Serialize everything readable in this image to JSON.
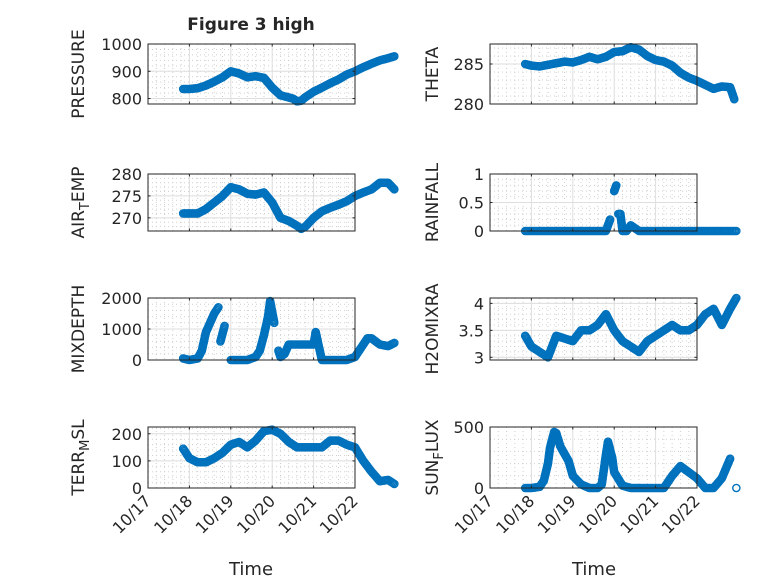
{
  "figure": {
    "title": "Figure 3 high",
    "x_tick_labels": [
      "10/17",
      "10/18",
      "10/19",
      "10/20",
      "10/21",
      "10/22"
    ],
    "xlabel": "Time",
    "marker_color": "#0072bd",
    "marker": "open-circle"
  },
  "chart_data": [
    {
      "type": "scatter",
      "id": "pressure",
      "position": "row1-left",
      "title": "Figure 3 high",
      "ylabel": "PRESSURE",
      "ylabel_parts": [
        "PRESSURE"
      ],
      "ylim": [
        780,
        1000
      ],
      "yticks": [
        800,
        900,
        1000
      ],
      "x": [
        0.85,
        1.0,
        1.2,
        1.4,
        1.6,
        1.8,
        2.0,
        2.2,
        2.4,
        2.6,
        2.8,
        3.0,
        3.2,
        3.5,
        3.6,
        3.7,
        3.8,
        4.0,
        4.2,
        4.4,
        4.6,
        4.8,
        5.0,
        5.2,
        5.4,
        5.6,
        5.8,
        5.95
      ],
      "values": [
        835,
        835,
        838,
        848,
        862,
        878,
        900,
        892,
        878,
        882,
        876,
        840,
        812,
        800,
        790,
        792,
        805,
        825,
        840,
        856,
        870,
        888,
        900,
        915,
        928,
        940,
        948,
        955
      ],
      "grid": true,
      "minor_grid": true
    },
    {
      "type": "scatter",
      "id": "theta",
      "position": "row1-right",
      "ylabel": "THETA",
      "ylabel_parts": [
        "THETA"
      ],
      "ylim": [
        280,
        287.5
      ],
      "yticks": [
        280,
        285
      ],
      "x": [
        0.85,
        1.0,
        1.2,
        1.4,
        1.6,
        1.8,
        2.0,
        2.2,
        2.4,
        2.6,
        2.8,
        3.0,
        3.2,
        3.4,
        3.6,
        3.8,
        4.0,
        4.2,
        4.4,
        4.6,
        4.8,
        5.0,
        5.2,
        5.4,
        5.6,
        5.8,
        5.9
      ],
      "values": [
        285,
        284.8,
        284.7,
        284.9,
        285.1,
        285.3,
        285.2,
        285.5,
        285.9,
        285.6,
        285.9,
        286.5,
        286.6,
        287.1,
        286.8,
        286.0,
        285.5,
        285.3,
        284.8,
        283.9,
        283.3,
        282.9,
        282.4,
        281.9,
        282.2,
        282.1,
        280.6
      ],
      "grid": true,
      "minor_grid": true
    },
    {
      "type": "scatter",
      "id": "air-temp",
      "position": "row2-left",
      "ylabel": "AIR_TEMP",
      "ylabel_parts": [
        "AIR",
        "T",
        "EMP"
      ],
      "ylim": [
        267,
        280
      ],
      "yticks": [
        270,
        275,
        280
      ],
      "x": [
        0.85,
        1.0,
        1.2,
        1.4,
        1.6,
        1.8,
        2.0,
        2.2,
        2.4,
        2.6,
        2.8,
        3.0,
        3.2,
        3.4,
        3.6,
        3.7,
        3.8,
        4.0,
        4.2,
        4.4,
        4.6,
        4.8,
        5.0,
        5.2,
        5.4,
        5.6,
        5.8,
        5.95
      ],
      "values": [
        271,
        271,
        271,
        272,
        273.5,
        275,
        277,
        276.5,
        275.5,
        275.3,
        275.8,
        273.5,
        270,
        269.3,
        268.2,
        267.5,
        268,
        270,
        271.5,
        272.3,
        273,
        273.8,
        275,
        275.8,
        276.5,
        278,
        278,
        276.5
      ],
      "grid": true,
      "minor_grid": true
    },
    {
      "type": "scatter",
      "id": "rainfall",
      "position": "row2-right",
      "ylabel": "RAINFALL",
      "ylabel_parts": [
        "RAINFALL"
      ],
      "ylim": [
        0,
        1
      ],
      "yticks": [
        0,
        0.5,
        1
      ],
      "x": [
        0.85,
        1.2,
        1.6,
        2.0,
        2.4,
        2.8,
        2.9,
        3.0,
        3.05,
        3.1,
        3.15,
        3.2,
        3.3,
        3.4,
        3.6,
        3.8,
        4.0,
        4.4,
        4.8,
        5.2,
        5.6,
        5.95
      ],
      "values": [
        0,
        0,
        0,
        0,
        0,
        0,
        0.2,
        0.7,
        0.8,
        0.3,
        0.3,
        0,
        0,
        0.1,
        0,
        0,
        0,
        0,
        0,
        0,
        0,
        0
      ],
      "grid": true,
      "minor_grid": true
    },
    {
      "type": "scatter",
      "id": "mixdepth",
      "position": "row3-left",
      "ylabel": "MIXDEPTH",
      "ylabel_parts": [
        "MIXDEPTH"
      ],
      "ylim": [
        0,
        2000
      ],
      "yticks": [
        0,
        1000,
        2000
      ],
      "x": [
        0.85,
        1.0,
        1.2,
        1.3,
        1.4,
        1.5,
        1.6,
        1.7,
        1.75,
        1.85,
        2.0,
        2.2,
        2.4,
        2.6,
        2.7,
        2.8,
        2.9,
        2.95,
        3.05,
        3.15,
        3.2,
        3.3,
        3.4,
        3.6,
        3.8,
        4.0,
        4.05,
        4.1,
        4.2,
        4.4,
        4.6,
        4.8,
        5.0,
        5.2,
        5.3,
        5.4,
        5.6,
        5.8,
        5.95
      ],
      "values": [
        50,
        0,
        50,
        300,
        900,
        1200,
        1500,
        1700,
        600,
        1100,
        0,
        0,
        0,
        100,
        300,
        800,
        1400,
        1900,
        1200,
        300,
        100,
        200,
        500,
        500,
        500,
        500,
        900,
        600,
        0,
        0,
        0,
        0,
        100,
        500,
        700,
        700,
        500,
        450,
        550
      ],
      "grid": true,
      "minor_grid": true
    },
    {
      "type": "scatter",
      "id": "h2omixra",
      "position": "row3-right",
      "ylabel": "H2OMIXRA",
      "ylabel_parts": [
        "H2OMIXRA"
      ],
      "ylim": [
        2.95,
        4.1
      ],
      "yticks": [
        3,
        3.5,
        4
      ],
      "x": [
        0.85,
        1.0,
        1.2,
        1.4,
        1.6,
        1.8,
        2.0,
        2.2,
        2.4,
        2.6,
        2.8,
        3.0,
        3.2,
        3.4,
        3.6,
        3.8,
        4.0,
        4.2,
        4.4,
        4.6,
        4.8,
        5.0,
        5.2,
        5.4,
        5.6,
        5.8,
        5.95
      ],
      "values": [
        3.4,
        3.2,
        3.1,
        3.0,
        3.4,
        3.35,
        3.3,
        3.5,
        3.5,
        3.6,
        3.8,
        3.5,
        3.3,
        3.2,
        3.1,
        3.3,
        3.4,
        3.5,
        3.6,
        3.5,
        3.5,
        3.6,
        3.8,
        3.9,
        3.6,
        3.9,
        4.1
      ],
      "grid": true,
      "minor_grid": true
    },
    {
      "type": "scatter",
      "id": "terr-msl",
      "position": "row4-left",
      "ylabel": "TERR_MSL",
      "ylabel_parts": [
        "TERR",
        "M",
        "SL"
      ],
      "ylim": [
        0,
        225
      ],
      "yticks": [
        0,
        100,
        200
      ],
      "x": [
        0.85,
        1.0,
        1.2,
        1.4,
        1.6,
        1.8,
        2.0,
        2.2,
        2.4,
        2.6,
        2.8,
        3.0,
        3.2,
        3.4,
        3.6,
        3.8,
        4.0,
        4.2,
        4.4,
        4.6,
        4.8,
        5.0,
        5.2,
        5.4,
        5.6,
        5.8,
        5.95
      ],
      "values": [
        145,
        110,
        95,
        95,
        110,
        130,
        160,
        170,
        150,
        175,
        210,
        215,
        200,
        170,
        150,
        150,
        150,
        150,
        175,
        175,
        160,
        150,
        100,
        60,
        25,
        30,
        15
      ],
      "grid": true,
      "minor_grid": true
    },
    {
      "type": "scatter",
      "id": "sun-flux",
      "position": "row4-right",
      "ylabel": "SUN_FLUX",
      "ylabel_parts": [
        "SUN",
        "F",
        "LUX"
      ],
      "ylim": [
        0,
        500
      ],
      "yticks": [
        0,
        500
      ],
      "x": [
        0.85,
        1.0,
        1.2,
        1.3,
        1.4,
        1.45,
        1.55,
        1.6,
        1.7,
        1.9,
        2.0,
        2.2,
        2.4,
        2.6,
        2.7,
        2.75,
        2.8,
        2.85,
        2.95,
        3.0,
        3.2,
        3.4,
        3.6,
        3.8,
        4.0,
        4.2,
        4.4,
        4.6,
        4.8,
        5.0,
        5.2,
        5.3,
        5.4,
        5.6,
        5.8,
        5.95
      ],
      "values": [
        0,
        0,
        10,
        60,
        200,
        330,
        460,
        450,
        340,
        220,
        100,
        30,
        0,
        0,
        30,
        150,
        270,
        380,
        250,
        130,
        20,
        0,
        0,
        0,
        0,
        0,
        100,
        180,
        130,
        80,
        0,
        0,
        0,
        80,
        240,
        0
      ],
      "grid": true,
      "minor_grid": true
    }
  ]
}
